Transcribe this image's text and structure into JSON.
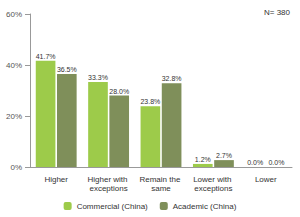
{
  "chart_data": {
    "type": "bar",
    "annotation": "N= 380",
    "categories": [
      "Higher",
      "Higher with exceptions",
      "Remain the same",
      "Lower with exceptions",
      "Lower"
    ],
    "series": [
      {
        "name": "Commercial (China)",
        "color": "#9dcb4a",
        "values": [
          41.7,
          33.3,
          23.8,
          1.2,
          0.0
        ],
        "value_labels": [
          "41.7%",
          "33.3%",
          "23.8%",
          "1.2%",
          "0.0%"
        ]
      },
      {
        "name": "Academic (China)",
        "color": "#7f8f5a",
        "values": [
          36.5,
          28.0,
          32.8,
          2.7,
          0.0
        ],
        "value_labels": [
          "36.5%",
          "28.0%",
          "32.8%",
          "2.7%",
          "0.0%"
        ]
      }
    ],
    "ylim": [
      0,
      60
    ],
    "yticks": [
      {
        "value": 0,
        "label": "0%"
      },
      {
        "value": 20,
        "label": "20%"
      },
      {
        "value": 40,
        "label": "40%"
      },
      {
        "value": 60,
        "label": "60%"
      }
    ],
    "grid": false,
    "legend": "bottom",
    "data_labels": true
  }
}
